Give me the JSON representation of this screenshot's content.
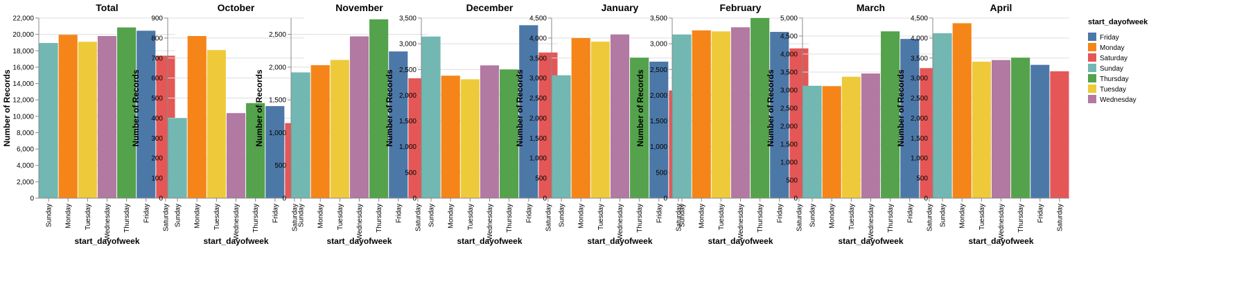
{
  "chart_data": [
    {
      "type": "bar",
      "title": "Total",
      "xlabel": "start_dayofweek",
      "ylabel": "Number of Records",
      "categories": [
        "Sunday",
        "Monday",
        "Tuesday",
        "Wednesday",
        "Thursday",
        "Friday",
        "Saturday"
      ],
      "values": [
        18950,
        19950,
        19100,
        19800,
        20850,
        20450,
        17400
      ],
      "ylim": [
        0,
        22000
      ],
      "tick_step": 2000
    },
    {
      "type": "bar",
      "title": "October",
      "xlabel": "start_dayofweek",
      "ylabel": "Number of Records",
      "categories": [
        "Sunday",
        "Monday",
        "Tuesday",
        "Wednesday",
        "Thursday",
        "Friday",
        "Saturday"
      ],
      "values": [
        400,
        810,
        740,
        425,
        475,
        460,
        375
      ],
      "ylim": [
        0,
        900
      ],
      "tick_step": 100
    },
    {
      "type": "bar",
      "title": "November",
      "xlabel": "start_dayofweek",
      "ylabel": "Number of Records",
      "categories": [
        "Sunday",
        "Monday",
        "Tuesday",
        "Wednesday",
        "Thursday",
        "Friday",
        "Saturday"
      ],
      "values": [
        1920,
        2030,
        2110,
        2470,
        2730,
        2240,
        1830
      ],
      "ylim": [
        0,
        2750
      ],
      "tick_step": 500
    },
    {
      "type": "bar",
      "title": "December",
      "xlabel": "start_dayofweek",
      "ylabel": "Number of Records",
      "categories": [
        "Sunday",
        "Monday",
        "Tuesday",
        "Wednesday",
        "Thursday",
        "Friday",
        "Saturday"
      ],
      "values": [
        3140,
        2380,
        2310,
        2580,
        2500,
        3360,
        2830
      ],
      "ylim": [
        0,
        3500
      ],
      "tick_step": 500
    },
    {
      "type": "bar",
      "title": "January",
      "xlabel": "start_dayofweek",
      "ylabel": "Number of Records",
      "categories": [
        "Sunday",
        "Monday",
        "Tuesday",
        "Wednesday",
        "Thursday",
        "Friday",
        "Saturday"
      ],
      "values": [
        3070,
        4000,
        3910,
        4090,
        3510,
        3410,
        2690
      ],
      "ylim": [
        0,
        4500
      ],
      "tick_step": 500
    },
    {
      "type": "bar",
      "title": "February",
      "xlabel": "start_dayofweek",
      "ylabel": "Number of Records",
      "categories": [
        "Sunday",
        "Monday",
        "Tuesday",
        "Wednesday",
        "Thursday",
        "Friday",
        "Saturday"
      ],
      "values": [
        3180,
        3260,
        3240,
        3320,
        3500,
        3230,
        2910
      ],
      "ylim": [
        0,
        3500
      ],
      "tick_step": 500
    },
    {
      "type": "bar",
      "title": "March",
      "xlabel": "start_dayofweek",
      "ylabel": "Number of Records",
      "categories": [
        "Sunday",
        "Monday",
        "Tuesday",
        "Wednesday",
        "Thursday",
        "Friday",
        "Saturday"
      ],
      "values": [
        3120,
        3110,
        3370,
        3460,
        4630,
        4420,
        3610
      ],
      "ylim": [
        0,
        5000
      ],
      "tick_step": 500
    },
    {
      "type": "bar",
      "title": "April",
      "xlabel": "start_dayofweek",
      "ylabel": "Number of Records",
      "categories": [
        "Sunday",
        "Monday",
        "Tuesday",
        "Wednesday",
        "Thursday",
        "Friday",
        "Saturday"
      ],
      "values": [
        4120,
        4370,
        3410,
        3450,
        3510,
        3330,
        3170
      ],
      "ylim": [
        0,
        4500
      ],
      "tick_step": 500
    }
  ],
  "legend": {
    "title": "start_dayofweek",
    "placement": "right",
    "items": [
      {
        "label": "Friday",
        "color": "#4c78a8"
      },
      {
        "label": "Monday",
        "color": "#f58518"
      },
      {
        "label": "Saturday",
        "color": "#e45756"
      },
      {
        "label": "Sunday",
        "color": "#72b7b2"
      },
      {
        "label": "Thursday",
        "color": "#54a24b"
      },
      {
        "label": "Tuesday",
        "color": "#eeca3b"
      },
      {
        "label": "Wednesday",
        "color": "#b279a2"
      }
    ]
  }
}
